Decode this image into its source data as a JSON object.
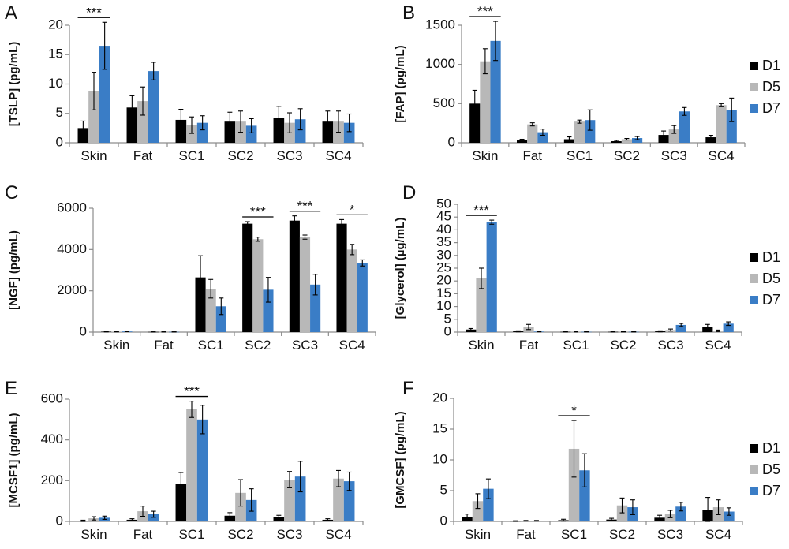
{
  "colors": {
    "D1": "#000000",
    "D5": "#b8b8b8",
    "D7": "#3a7dc6",
    "axis": "#8c8c8c"
  },
  "legend": [
    "D1",
    "D5",
    "D7"
  ],
  "chart_data": [
    {
      "panel": "A",
      "type": "bar",
      "ylabel": "[TSLP] (pg/mL)",
      "ylim": [
        0,
        20
      ],
      "yticks": [
        0,
        5,
        10,
        15,
        20
      ],
      "categories": [
        "Skin",
        "Fat",
        "SC1",
        "SC2",
        "SC3",
        "SC4"
      ],
      "series": [
        {
          "name": "D1",
          "values": [
            2.5,
            6.0,
            3.9,
            3.6,
            4.2,
            3.6
          ],
          "errors": [
            1.2,
            2.0,
            1.8,
            1.6,
            2.0,
            1.8
          ]
        },
        {
          "name": "D5",
          "values": [
            8.8,
            7.1,
            3.0,
            3.6,
            3.4,
            3.6
          ],
          "errors": [
            3.2,
            2.4,
            1.4,
            1.8,
            1.7,
            1.8
          ]
        },
        {
          "name": "D7",
          "values": [
            16.5,
            12.2,
            3.4,
            2.9,
            4.0,
            3.4
          ],
          "errors": [
            4.0,
            1.5,
            1.2,
            1.2,
            1.8,
            1.5
          ]
        }
      ],
      "significance": [
        {
          "category": "Skin",
          "label": "***"
        }
      ]
    },
    {
      "panel": "B",
      "type": "bar",
      "ylabel": "[FAP] (pg/mL)",
      "ylim": [
        0,
        1500
      ],
      "yticks": [
        0,
        500,
        1000,
        1500
      ],
      "categories": [
        "Skin",
        "Fat",
        "SC1",
        "SC2",
        "SC3",
        "SC4"
      ],
      "series": [
        {
          "name": "D1",
          "values": [
            500,
            30,
            45,
            20,
            100,
            70
          ],
          "errors": [
            170,
            15,
            30,
            10,
            50,
            25
          ]
        },
        {
          "name": "D5",
          "values": [
            1040,
            235,
            270,
            45,
            170,
            480
          ],
          "errors": [
            160,
            20,
            20,
            10,
            50,
            20
          ]
        },
        {
          "name": "D7",
          "values": [
            1300,
            135,
            290,
            60,
            400,
            420
          ],
          "errors": [
            250,
            40,
            130,
            20,
            50,
            150
          ]
        }
      ],
      "significance": [
        {
          "category": "Skin",
          "label": "***"
        }
      ]
    },
    {
      "panel": "C",
      "type": "bar",
      "ylabel": "[NGF] (pg/mL)",
      "ylim": [
        0,
        6000
      ],
      "yticks": [
        0,
        2000,
        4000,
        6000
      ],
      "categories": [
        "Skin",
        "Fat",
        "SC1",
        "SC2",
        "SC3",
        "SC4"
      ],
      "series": [
        {
          "name": "D1",
          "values": [
            20,
            10,
            2650,
            5250,
            5400,
            5250
          ],
          "errors": [
            10,
            5,
            1050,
            100,
            230,
            200
          ]
        },
        {
          "name": "D5",
          "values": [
            20,
            10,
            2100,
            4500,
            4600,
            4000
          ],
          "errors": [
            10,
            5,
            450,
            100,
            100,
            250
          ]
        },
        {
          "name": "D7",
          "values": [
            30,
            10,
            1250,
            2050,
            2300,
            3350
          ],
          "errors": [
            10,
            5,
            400,
            600,
            500,
            150
          ]
        }
      ],
      "significance": [
        {
          "category": "SC2",
          "label": "***"
        },
        {
          "category": "SC3",
          "label": "***"
        },
        {
          "category": "SC4",
          "label": "*"
        }
      ]
    },
    {
      "panel": "D",
      "type": "bar",
      "ylabel": "[Glycerol] (µg/mL)",
      "ylim": [
        0,
        50
      ],
      "yticks": [
        0,
        5,
        10,
        15,
        20,
        25,
        30,
        35,
        40,
        45,
        50
      ],
      "categories": [
        "Skin",
        "Fat",
        "SC1",
        "SC2",
        "SC3",
        "SC4"
      ],
      "series": [
        {
          "name": "D1",
          "values": [
            1.0,
            0.3,
            0.1,
            0.1,
            0.3,
            2.0
          ],
          "errors": [
            0.4,
            0.2,
            0.05,
            0.05,
            0.2,
            1.0
          ]
        },
        {
          "name": "D5",
          "values": [
            21.0,
            2.0,
            0.1,
            0.1,
            0.8,
            0.5
          ],
          "errors": [
            4.0,
            1.0,
            0.05,
            0.05,
            0.4,
            0.3
          ]
        },
        {
          "name": "D7",
          "values": [
            43.0,
            0.2,
            0.1,
            0.1,
            2.8,
            3.3
          ],
          "errors": [
            0.8,
            0.1,
            0.05,
            0.05,
            0.6,
            0.7
          ]
        }
      ],
      "significance": [
        {
          "category": "Skin",
          "label": "***"
        }
      ]
    },
    {
      "panel": "E",
      "type": "bar",
      "ylabel": "[MCSF1] (pg/mL)",
      "ylim": [
        0,
        600
      ],
      "yticks": [
        0,
        200,
        400,
        600
      ],
      "categories": [
        "Skin",
        "Fat",
        "SC1",
        "SC2",
        "SC3",
        "SC4"
      ],
      "series": [
        {
          "name": "D1",
          "values": [
            3,
            8,
            185,
            28,
            20,
            8
          ],
          "errors": [
            3,
            5,
            55,
            15,
            10,
            5
          ]
        },
        {
          "name": "D5",
          "values": [
            15,
            50,
            550,
            140,
            205,
            210
          ],
          "errors": [
            8,
            25,
            40,
            65,
            40,
            40
          ]
        },
        {
          "name": "D7",
          "values": [
            18,
            35,
            500,
            105,
            220,
            197
          ],
          "errors": [
            8,
            15,
            70,
            55,
            75,
            45
          ]
        }
      ],
      "significance": [
        {
          "category": "SC1",
          "label": "***"
        }
      ]
    },
    {
      "panel": "F",
      "type": "bar",
      "ylabel": "[GMCSF] (pg/mL)",
      "ylim": [
        0,
        20
      ],
      "yticks": [
        0,
        5,
        10,
        15,
        20
      ],
      "categories": [
        "Skin",
        "Fat",
        "SC1",
        "SC2",
        "SC3",
        "SC4"
      ],
      "series": [
        {
          "name": "D1",
          "values": [
            0.7,
            0.05,
            0.2,
            0.3,
            0.6,
            1.9
          ],
          "errors": [
            0.5,
            0.05,
            0.15,
            0.2,
            0.4,
            2.0
          ]
        },
        {
          "name": "D5",
          "values": [
            3.3,
            0.1,
            11.8,
            2.6,
            1.2,
            2.3
          ],
          "errors": [
            1.2,
            0.05,
            4.6,
            1.2,
            0.6,
            1.2
          ]
        },
        {
          "name": "D7",
          "values": [
            5.3,
            0.1,
            8.3,
            2.3,
            2.4,
            1.6
          ],
          "errors": [
            1.6,
            0.05,
            2.7,
            1.2,
            0.7,
            0.6
          ]
        }
      ],
      "significance": [
        {
          "category": "SC1",
          "label": "*"
        }
      ]
    }
  ]
}
